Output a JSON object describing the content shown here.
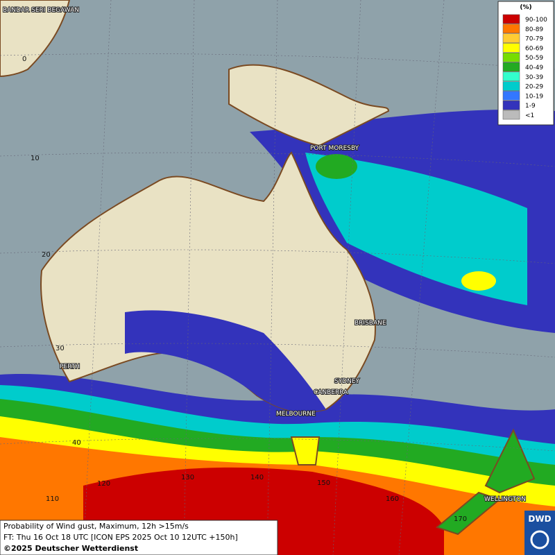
{
  "places": [
    "BANDAR SERI BEGAWAN",
    "PORT MORESBY",
    "BRISBANE",
    "PERTH",
    "SYDNEY",
    "CANBERRA",
    "MELBOURNE",
    "WELLINGTON"
  ],
  "latitudes": [
    "0",
    "10",
    "20",
    "30",
    "40"
  ],
  "longitudes": [
    "110",
    "120",
    "130",
    "140",
    "150",
    "160",
    "170"
  ],
  "legend": {
    "title": "(%)",
    "items": [
      {
        "label": "90-100",
        "color": "#cc0000"
      },
      {
        "label": "80-89",
        "color": "#ff7700"
      },
      {
        "label": "70-79",
        "color": "#ffcc33"
      },
      {
        "label": "60-69",
        "color": "#ffff00"
      },
      {
        "label": "50-59",
        "color": "#77dd00"
      },
      {
        "label": "40-49",
        "color": "#22aa22"
      },
      {
        "label": "30-39",
        "color": "#33ffcc"
      },
      {
        "label": "20-29",
        "color": "#00cccc"
      },
      {
        "label": "10-19",
        "color": "#3377ff"
      },
      {
        "label": "1-9",
        "color": "#3333bb"
      },
      {
        "label": "<1",
        "color": "#bbbbbb"
      }
    ]
  },
  "footer": {
    "line1": "Probability of Wind gust, Maximum, 12h >15m/s",
    "line2": "FT: Thu 16 Oct 18 UTC [ICON EPS 2025 Oct 10 12UTC +150h]",
    "copyright": "©2025 Deutscher Wetterdienst"
  },
  "logo": "DWD"
}
